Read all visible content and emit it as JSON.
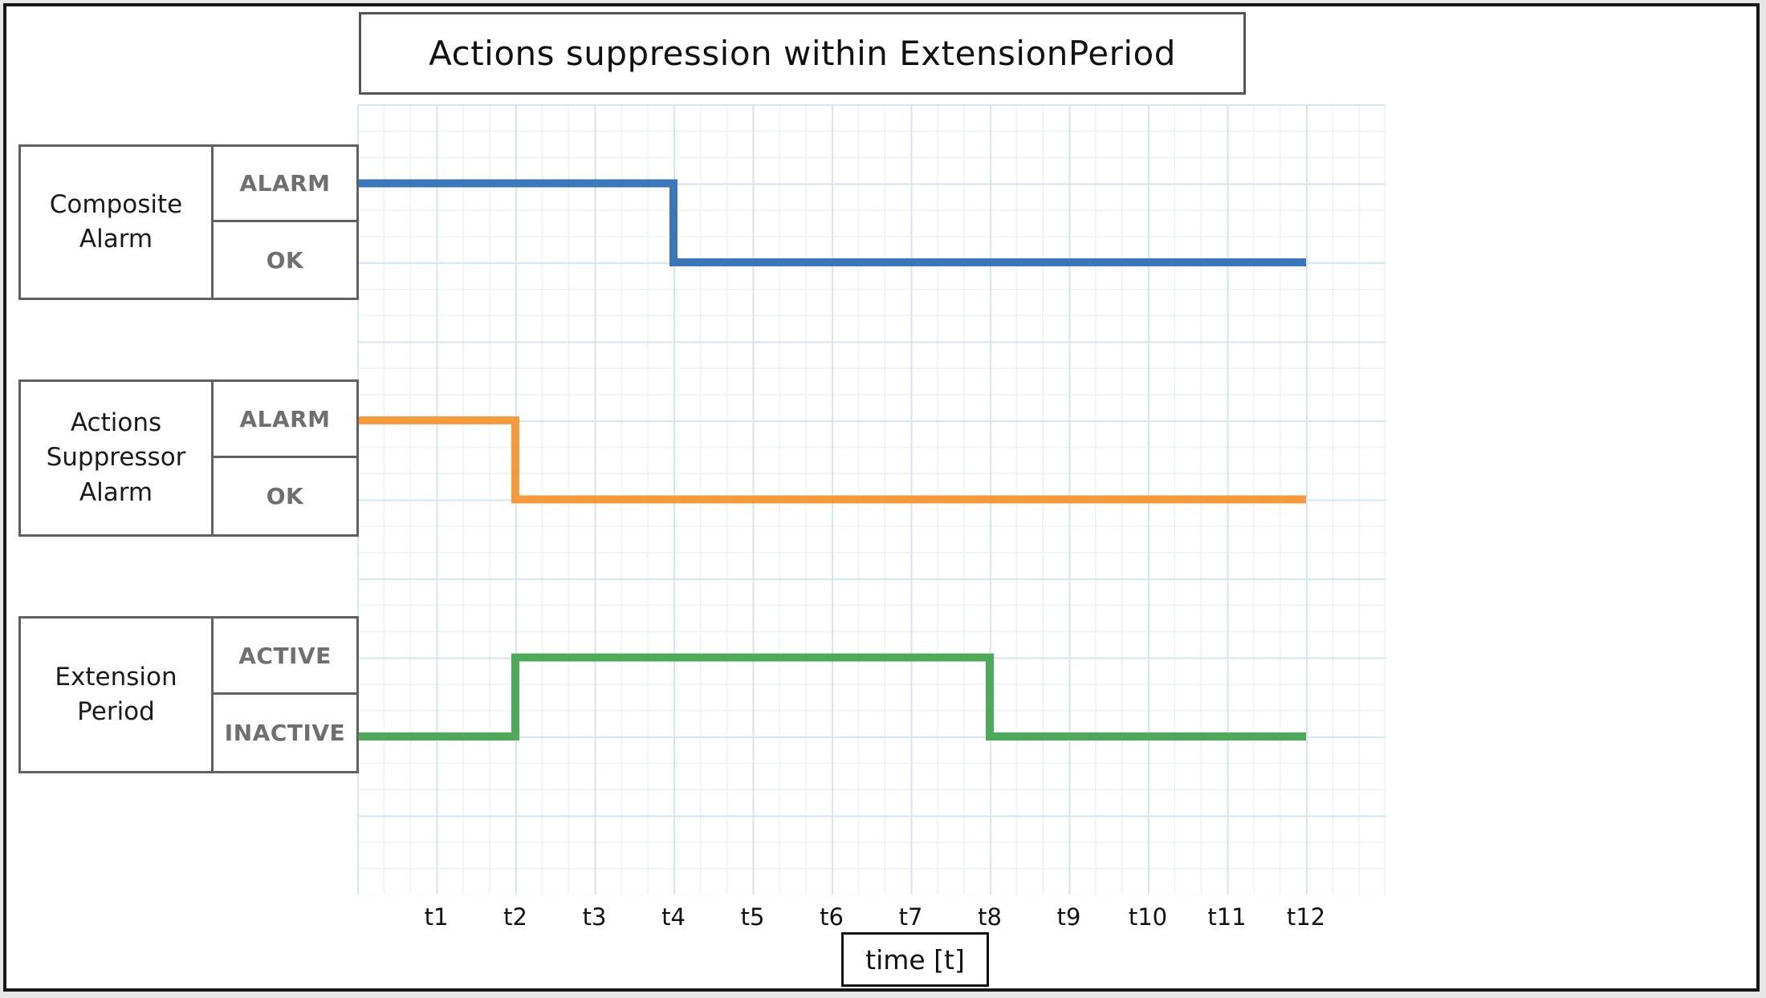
{
  "title": "Actions suppression within ExtensionPeriod",
  "axis": {
    "label": "time [t]",
    "ticks": [
      "t1",
      "t2",
      "t3",
      "t4",
      "t5",
      "t6",
      "t7",
      "t8",
      "t9",
      "t10",
      "t11",
      "t12"
    ]
  },
  "rows": [
    {
      "name": "Composite Alarm",
      "states": [
        "ALARM",
        "OK"
      ],
      "color": "#3b76b8"
    },
    {
      "name": "Actions Suppressor Alarm",
      "states": [
        "ALARM",
        "OK"
      ],
      "color": "#f79a3d"
    },
    {
      "name": "Extension Period",
      "states": [
        "ACTIVE",
        "INACTIVE"
      ],
      "color": "#4caa58"
    }
  ],
  "colors": {
    "grid_major": "#d6e6f1",
    "grid_minor": "#eaf2f9",
    "state_text": "#6f6f6f",
    "box_border": "#616161",
    "frame": "#161616"
  },
  "chart_data": {
    "type": "line",
    "subtype": "step-state-timeline",
    "title": "Actions suppression within ExtensionPeriod",
    "x": [
      "t1",
      "t2",
      "t3",
      "t4",
      "t5",
      "t6",
      "t7",
      "t8",
      "t9",
      "t10",
      "t11",
      "t12"
    ],
    "xlabel": "time [t]",
    "grid": true,
    "legend_position": "none",
    "series": [
      {
        "name": "Composite Alarm",
        "color": "#3b76b8",
        "levels": [
          "ALARM",
          "OK"
        ],
        "values": [
          "ALARM",
          "ALARM",
          "ALARM",
          "OK",
          "OK",
          "OK",
          "OK",
          "OK",
          "OK",
          "OK",
          "OK",
          "OK"
        ]
      },
      {
        "name": "Actions Suppressor Alarm",
        "color": "#f79a3d",
        "levels": [
          "ALARM",
          "OK"
        ],
        "values": [
          "ALARM",
          "OK",
          "OK",
          "OK",
          "OK",
          "OK",
          "OK",
          "OK",
          "OK",
          "OK",
          "OK",
          "OK"
        ]
      },
      {
        "name": "Extension Period",
        "color": "#4caa58",
        "levels": [
          "ACTIVE",
          "INACTIVE"
        ],
        "values": [
          "INACTIVE",
          "ACTIVE",
          "ACTIVE",
          "ACTIVE",
          "ACTIVE",
          "ACTIVE",
          "ACTIVE",
          "INACTIVE",
          "INACTIVE",
          "INACTIVE",
          "INACTIVE",
          "INACTIVE"
        ]
      }
    ],
    "transitions": [
      {
        "series": "Composite Alarm",
        "at": "t4",
        "from": "ALARM",
        "to": "OK"
      },
      {
        "series": "Actions Suppressor Alarm",
        "at": "t2",
        "from": "ALARM",
        "to": "OK"
      },
      {
        "series": "Extension Period",
        "at": "t2",
        "from": "INACTIVE",
        "to": "ACTIVE"
      },
      {
        "series": "Extension Period",
        "at": "t8",
        "from": "ACTIVE",
        "to": "INACTIVE"
      }
    ]
  }
}
